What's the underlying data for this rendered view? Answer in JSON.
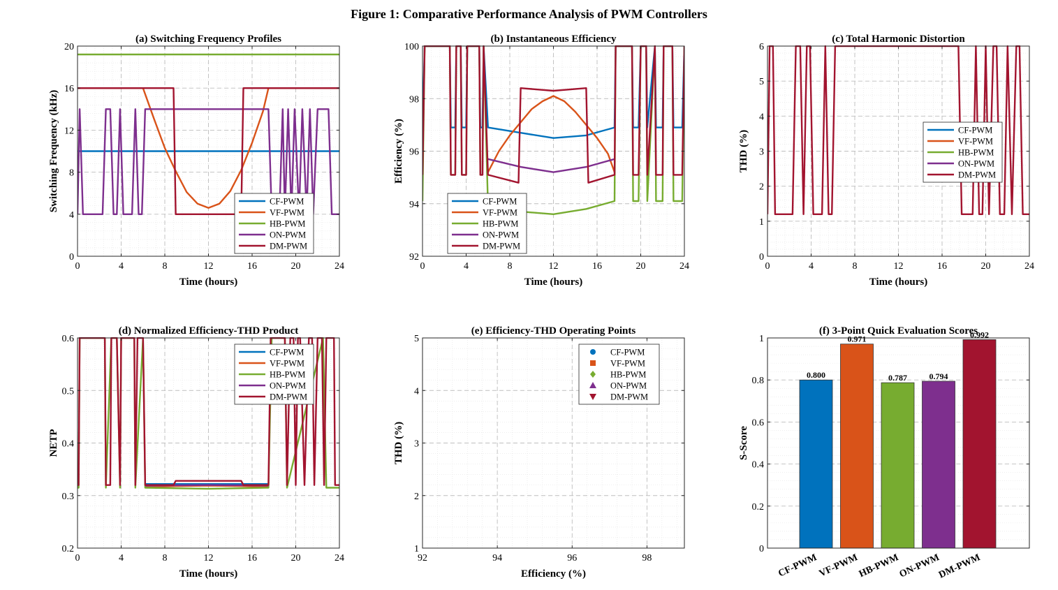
{
  "figure_title": "Figure 1: Comparative Performance Analysis of PWM Controllers",
  "colors": {
    "CF-PWM": "#0072BD",
    "VF-PWM": "#D95319",
    "HB-PWM": "#77AC30",
    "ON-PWM": "#7E2F8E",
    "DM-PWM": "#A2142F"
  },
  "chart_data": [
    {
      "id": "a",
      "type": "line",
      "title": "(a) Switching Frequency Profiles",
      "xlabel": "Time (hours)",
      "ylabel": "Switching Frequency (kHz)",
      "xlim": [
        0,
        24
      ],
      "ylim": [
        0,
        20
      ],
      "xticks": [
        0,
        4,
        8,
        12,
        16,
        20,
        24
      ],
      "yticks": [
        0,
        4,
        8,
        12,
        16,
        20
      ],
      "grid": true,
      "legend": "lower-right",
      "series": [
        {
          "name": "CF-PWM",
          "x": [
            0,
            24
          ],
          "y": [
            10,
            10
          ]
        },
        {
          "name": "VF-PWM",
          "x": [
            0,
            5.5,
            6,
            7,
            8,
            9,
            10,
            11,
            12,
            13,
            14,
            15,
            16,
            17,
            17.5,
            18,
            24
          ],
          "y": [
            16,
            16,
            16,
            13.1,
            10.3,
            8.1,
            6.1,
            5,
            4.6,
            5,
            6.2,
            8.2,
            10.8,
            13.8,
            16,
            16,
            16
          ]
        },
        {
          "name": "HB-PWM",
          "x": [
            0,
            24
          ],
          "y": [
            19.2,
            19.2
          ]
        },
        {
          "name": "ON-PWM",
          "x": [
            0,
            0.2,
            0.5,
            2.3,
            2.6,
            3.0,
            3.3,
            3.6,
            3.9,
            4.2,
            5.0,
            5.3,
            5.6,
            5.9,
            6.2,
            17.5,
            17.8,
            18.5,
            18.8,
            19.0,
            19.3,
            19.6,
            19.9,
            20.3,
            20.6,
            21.0,
            21.3,
            21.6,
            22.0,
            23.0,
            23.3,
            23.6,
            24
          ],
          "y": [
            4,
            14,
            4,
            4,
            14,
            14,
            4,
            4,
            14,
            4,
            4,
            14,
            4,
            4,
            14,
            14,
            4,
            4,
            14,
            4,
            14,
            4,
            14,
            4,
            14,
            4,
            14,
            4,
            14,
            14,
            4,
            4,
            4
          ]
        },
        {
          "name": "DM-PWM",
          "x": [
            0,
            8.8,
            9.0,
            15.0,
            15.2,
            24
          ],
          "y": [
            16,
            16,
            4,
            4,
            16,
            16
          ]
        }
      ]
    },
    {
      "id": "b",
      "type": "line",
      "title": "(b) Instantaneous Efficiency",
      "xlabel": "Time (hours)",
      "ylabel": "Efficiency (%)",
      "xlim": [
        0,
        24
      ],
      "ylim": [
        92,
        100
      ],
      "xticks": [
        0,
        4,
        8,
        12,
        16,
        20,
        24
      ],
      "yticks": [
        92,
        94,
        96,
        98,
        100
      ],
      "grid": true,
      "legend": "lower-left",
      "series": [
        {
          "name": "CF-PWM",
          "x": [
            0,
            0.2,
            0.6,
            2.5,
            2.6,
            3.0,
            3.1,
            3.5,
            3.6,
            4.0,
            4.1,
            5.2,
            5.3,
            5.5,
            5.6,
            6.0,
            9,
            12,
            15,
            17.6,
            17.7,
            19.2,
            19.3,
            19.8,
            20.0,
            20.5,
            20.6,
            21.3,
            21.4,
            22.0,
            22.1,
            22.9,
            23.0,
            23.8,
            24
          ],
          "y": [
            96.9,
            100,
            100,
            100,
            96.9,
            96.9,
            100,
            100,
            96.9,
            96.9,
            100,
            100,
            96.9,
            96.9,
            100,
            96.9,
            96.7,
            96.5,
            96.6,
            96.9,
            100,
            100,
            96.9,
            96.9,
            100,
            100,
            96.9,
            100,
            96.9,
            96.9,
            100,
            100,
            96.9,
            96.9,
            100
          ]
        },
        {
          "name": "VF-PWM",
          "x": [
            6.0,
            7,
            8,
            9,
            10,
            11,
            12,
            13,
            14,
            15,
            16,
            17,
            17.6
          ],
          "y": [
            95.2,
            96.0,
            96.6,
            97.1,
            97.6,
            97.9,
            98.1,
            97.9,
            97.5,
            97.0,
            96.5,
            95.9,
            95.2
          ]
        },
        {
          "name": "HB-PWM",
          "x": [
            0,
            0.2,
            0.6,
            2.5,
            2.6,
            3.0,
            3.1,
            3.5,
            3.6,
            4.0,
            4.1,
            5.2,
            5.3,
            5.5,
            5.6,
            6.0,
            9,
            12,
            15,
            17.6,
            17.7,
            19.2,
            19.3,
            19.8,
            20.0,
            20.5,
            20.6,
            21.3,
            21.4,
            22.0,
            22.1,
            22.9,
            23.0,
            23.8,
            24
          ],
          "y": [
            94.1,
            100,
            100,
            100,
            95.1,
            95.1,
            100,
            100,
            95.1,
            95.1,
            100,
            100,
            95.1,
            95.1,
            100,
            93.9,
            93.7,
            93.6,
            93.8,
            94.1,
            100,
            100,
            94.1,
            94.1,
            100,
            100,
            94.1,
            100,
            94.1,
            94.1,
            100,
            100,
            94.1,
            94.1,
            100
          ]
        },
        {
          "name": "ON-PWM",
          "x": [
            6.0,
            9,
            12,
            15,
            17.6
          ],
          "y": [
            95.7,
            95.4,
            95.2,
            95.4,
            95.7
          ]
        },
        {
          "name": "DM-PWM",
          "x": [
            0,
            0.2,
            0.6,
            2.5,
            2.6,
            3.0,
            3.1,
            3.5,
            3.6,
            4.0,
            4.1,
            5.2,
            5.3,
            5.5,
            5.6,
            6.0,
            8.8,
            9.0,
            12,
            15.0,
            15.2,
            17.6,
            17.7,
            19.2,
            19.3,
            19.8,
            20.0,
            20.5,
            20.6,
            21.3,
            21.4,
            22.0,
            22.1,
            22.9,
            23.0,
            23.8,
            24
          ],
          "y": [
            95.1,
            100,
            100,
            100,
            95.1,
            95.1,
            100,
            100,
            95.1,
            95.1,
            100,
            100,
            95.1,
            95.1,
            100,
            95.1,
            94.8,
            98.4,
            98.3,
            98.4,
            94.8,
            95.1,
            100,
            100,
            95.1,
            95.1,
            100,
            100,
            95.1,
            100,
            95.1,
            95.1,
            100,
            100,
            95.1,
            95.1,
            100
          ]
        }
      ]
    },
    {
      "id": "c",
      "type": "line",
      "title": "(c) Total Harmonic Distortion",
      "xlabel": "Time (hours)",
      "ylabel": "THD (%)",
      "xlim": [
        0,
        24
      ],
      "ylim": [
        0,
        6
      ],
      "xticks": [
        0,
        4,
        8,
        12,
        16,
        20,
        24
      ],
      "yticks": [
        0,
        1,
        2,
        3,
        4,
        5,
        6
      ],
      "grid": true,
      "legend": "center-right",
      "series": [
        {
          "name": "CF-PWM",
          "x": [],
          "y": []
        },
        {
          "name": "VF-PWM",
          "x": [],
          "y": []
        },
        {
          "name": "HB-PWM",
          "x": [],
          "y": []
        },
        {
          "name": "ON-PWM",
          "x": [],
          "y": []
        },
        {
          "name": "DM-PWM",
          "x": [
            0,
            0.2,
            0.5,
            0.7,
            2.3,
            2.6,
            3.0,
            3.3,
            3.6,
            3.9,
            4.2,
            5.0,
            5.3,
            5.6,
            5.9,
            6.2,
            17.5,
            17.8,
            18.8,
            19.1,
            19.4,
            19.7,
            20.0,
            20.3,
            20.7,
            21.0,
            21.3,
            21.7,
            22.0,
            22.4,
            22.8,
            23.1,
            23.4,
            23.7,
            24
          ],
          "y": [
            1.2,
            6,
            6,
            1.2,
            1.2,
            6,
            6,
            1.2,
            6,
            6,
            1.2,
            1.2,
            6,
            1.2,
            1.2,
            6,
            6,
            1.2,
            1.2,
            6,
            1.2,
            1.2,
            6,
            1.2,
            6,
            6,
            1.2,
            1.2,
            6,
            1.2,
            6,
            6,
            1.2,
            1.2,
            1.2
          ]
        }
      ]
    },
    {
      "id": "d",
      "type": "line",
      "title": "(d) Normalized Efficiency-THD Product",
      "xlabel": "Time (hours)",
      "ylabel": "NETP",
      "xlim": [
        0,
        24
      ],
      "ylim": [
        0.2,
        0.6
      ],
      "xticks": [
        0,
        4,
        8,
        12,
        16,
        20,
        24
      ],
      "yticks": [
        0.2,
        0.3,
        0.4,
        0.5,
        0.6
      ],
      "grid": true,
      "legend": "top-right",
      "series": [
        {
          "name": "CF-PWM",
          "x": [
            6.2,
            17.5
          ],
          "y": [
            0.322,
            0.322
          ]
        },
        {
          "name": "VF-PWM",
          "x": [
            6.2,
            9,
            12,
            15,
            17.5
          ],
          "y": [
            0.316,
            0.318,
            0.319,
            0.318,
            0.316
          ]
        },
        {
          "name": "HB-PWM",
          "x": [
            0,
            0.1,
            0.2,
            2.5,
            2.6,
            3.1,
            3.6,
            3.9,
            4.0,
            5.2,
            5.3,
            6.0,
            6.2,
            12,
            17.5,
            17.8,
            19.0,
            19.2,
            22.5,
            22.8,
            24
          ],
          "y": [
            0.315,
            0.315,
            0.6,
            0.6,
            0.315,
            0.6,
            0.6,
            0.315,
            0.6,
            0.6,
            0.315,
            0.6,
            0.315,
            0.313,
            0.315,
            0.6,
            0.6,
            0.315,
            0.6,
            0.315,
            0.315
          ]
        },
        {
          "name": "ON-PWM",
          "x": [
            6.2,
            12,
            17.5
          ],
          "y": [
            0.319,
            0.32,
            0.319
          ]
        },
        {
          "name": "DM-PWM",
          "x": [
            0,
            0.1,
            0.2,
            0.5,
            2.5,
            2.6,
            3.0,
            3.1,
            3.6,
            3.9,
            4.0,
            5.2,
            5.3,
            5.5,
            6.0,
            6.2,
            8.8,
            9.0,
            15.0,
            15.2,
            17.5,
            17.7,
            19.0,
            19.2,
            19.5,
            19.8,
            20.0,
            20.2,
            20.4,
            20.8,
            21.2,
            21.5,
            21.7,
            22.0,
            22.4,
            22.6,
            22.8,
            23.5,
            23.6,
            24
          ],
          "y": [
            0.32,
            0.32,
            0.6,
            0.6,
            0.6,
            0.32,
            0.32,
            0.6,
            0.6,
            0.32,
            0.6,
            0.6,
            0.32,
            0.6,
            0.6,
            0.32,
            0.32,
            0.328,
            0.328,
            0.32,
            0.32,
            0.6,
            0.6,
            0.32,
            0.6,
            0.6,
            0.32,
            0.6,
            0.6,
            0.32,
            0.6,
            0.6,
            0.32,
            0.6,
            0.6,
            0.32,
            0.6,
            0.6,
            0.32,
            0.32
          ]
        }
      ]
    },
    {
      "id": "e",
      "type": "scatter",
      "title": "(e) Efficiency-THD Operating Points",
      "xlabel": "Efficiency (%)",
      "ylabel": "THD (%)",
      "xlim": [
        92,
        99
      ],
      "ylim": [
        1,
        5
      ],
      "xticks": [
        92,
        94,
        96,
        98
      ],
      "yticks": [
        1,
        2,
        3,
        4,
        5
      ],
      "grid": true,
      "legend": "top-right",
      "series": [
        {
          "name": "CF-PWM",
          "marker": "circle",
          "x": [],
          "y": []
        },
        {
          "name": "VF-PWM",
          "marker": "square",
          "x": [],
          "y": []
        },
        {
          "name": "HB-PWM",
          "marker": "diamond",
          "x": [],
          "y": []
        },
        {
          "name": "ON-PWM",
          "marker": "triangle-up",
          "x": [],
          "y": []
        },
        {
          "name": "DM-PWM",
          "marker": "triangle-down",
          "x": [],
          "y": []
        }
      ]
    },
    {
      "id": "f",
      "type": "bar",
      "title": "(f) 3-Point Quick Evaluation Scores",
      "xlabel": "",
      "ylabel": "S-Score",
      "ylim": [
        0,
        1
      ],
      "yticks": [
        0,
        0.2,
        0.4,
        0.6,
        0.8,
        1
      ],
      "grid": true,
      "categories": [
        "CF-PWM",
        "VF-PWM",
        "HB-PWM",
        "ON-PWM",
        "DM-PWM"
      ],
      "values": [
        0.8,
        0.971,
        0.787,
        0.794,
        0.992
      ],
      "value_labels": [
        "0.800",
        "0.971",
        "0.787",
        "0.794",
        "0.992"
      ]
    }
  ]
}
